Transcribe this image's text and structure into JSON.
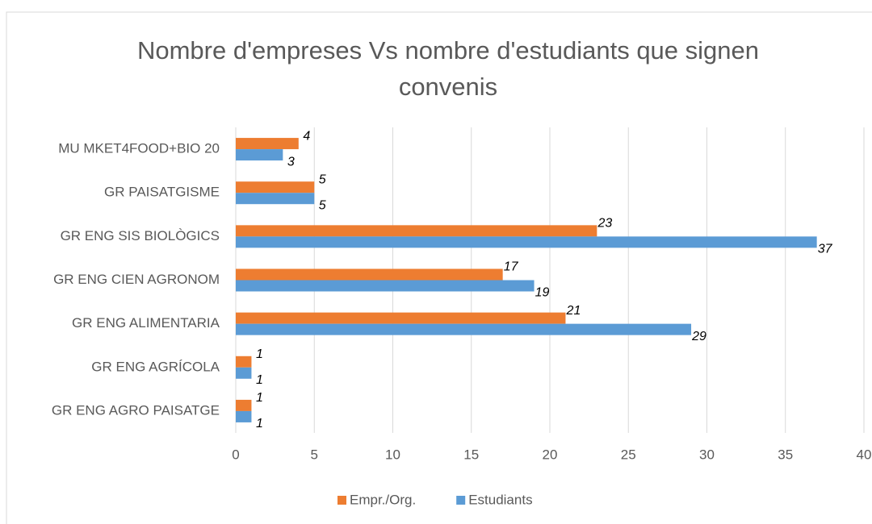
{
  "chart_data": {
    "type": "barh",
    "title": "Nombre d'empreses Vs nombre d'estudiants que signen convenis",
    "categories": [
      "MU MKET4FOOD+BIO 20",
      "GR PAISATGISME",
      "GR ENG SIS BIOLÒGICS",
      "GR ENG CIEN AGRONOM",
      "GR ENG ALIMENTARIA",
      "GR ENG AGRÍCOLA",
      "GR ENG AGRO PAISATGE"
    ],
    "series": [
      {
        "name": "Empr./Org.",
        "color": "#ed7d31",
        "values": [
          4,
          5,
          23,
          17,
          21,
          1,
          1
        ]
      },
      {
        "name": "Estudiants",
        "color": "#5b9bd5",
        "values": [
          3,
          5,
          37,
          19,
          29,
          1,
          1
        ]
      }
    ],
    "xlim": [
      0,
      40
    ],
    "xticks": [
      0,
      5,
      10,
      15,
      20,
      25,
      30,
      35,
      40
    ],
    "grid": true,
    "legend": "bottom"
  }
}
